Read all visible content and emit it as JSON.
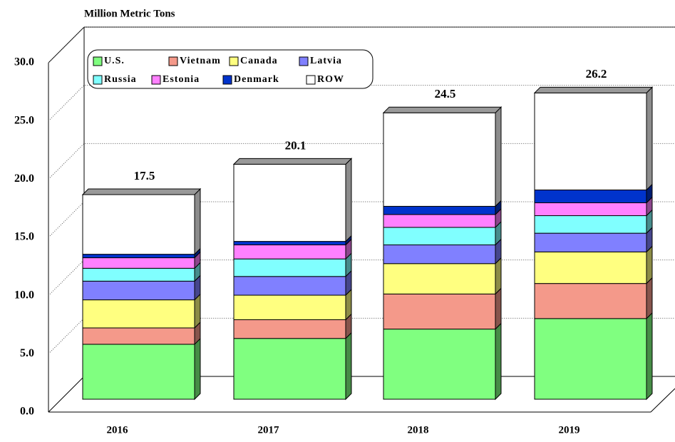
{
  "chart_data": {
    "type": "bar",
    "stacked": true,
    "title": "Million Metric Tons",
    "categories": [
      "2016",
      "2017",
      "2018",
      "2019"
    ],
    "series": [
      {
        "name": "U.S.",
        "color": "#80ff80",
        "values": [
          4.7,
          5.2,
          6.0,
          6.9
        ]
      },
      {
        "name": "Vietnam",
        "color": "#f4998a",
        "values": [
          1.4,
          1.6,
          3.0,
          3.0
        ]
      },
      {
        "name": "Canada",
        "color": "#ffff80",
        "values": [
          2.4,
          2.1,
          2.6,
          2.7
        ]
      },
      {
        "name": "Latvia",
        "color": "#8080ff",
        "values": [
          1.6,
          1.6,
          1.6,
          1.6
        ]
      },
      {
        "name": "Russia",
        "color": "#80ffff",
        "values": [
          1.1,
          1.5,
          1.5,
          1.5
        ]
      },
      {
        "name": "Estonia",
        "color": "#ff80ff",
        "values": [
          0.9,
          1.2,
          1.1,
          1.1
        ]
      },
      {
        "name": "Denmark",
        "color": "#0033cc",
        "values": [
          0.3,
          0.3,
          0.7,
          1.1
        ]
      },
      {
        "name": "ROW",
        "color": "#ffffff",
        "values": [
          5.1,
          6.6,
          8.0,
          8.3
        ]
      }
    ],
    "totals": [
      17.5,
      20.1,
      24.5,
      26.2
    ],
    "ylim": [
      0,
      30
    ],
    "yticks": [
      {
        "value": 0,
        "label": "0.0"
      },
      {
        "value": 5,
        "label": "5.0"
      },
      {
        "value": 10,
        "label": "10.0"
      },
      {
        "value": 15,
        "label": "15.0"
      },
      {
        "value": 20,
        "label": "20.0"
      },
      {
        "value": 25,
        "label": "25.0"
      },
      {
        "value": 30,
        "label": "30.0"
      }
    ],
    "grid": true
  }
}
